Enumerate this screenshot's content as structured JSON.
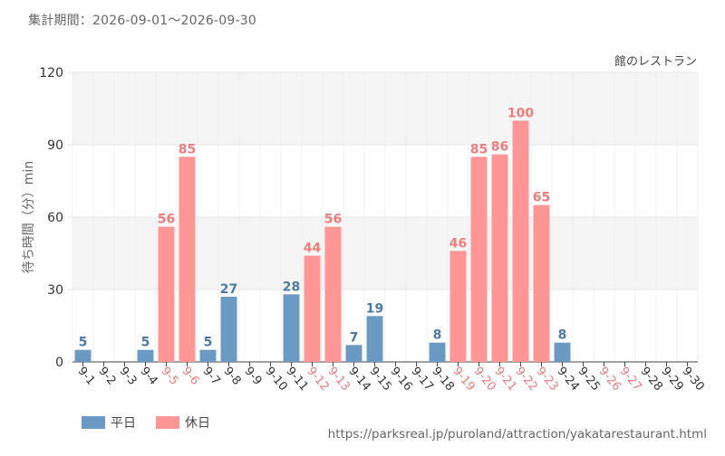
{
  "header": {
    "period": "集計期間：2026-09-01～2026-09-30"
  },
  "footer": {
    "source_url": "https://parksreal.jp/puroland/attraction/yakatarestaurant.html"
  },
  "colors": {
    "weekday": "#6a9ac3",
    "holiday": "#ff9595",
    "weekday_label": "#4a7aa6",
    "holiday_label": "#f07b7b",
    "band": "#f5f5f5",
    "grid": "#e6e6e6"
  },
  "chart_data": {
    "type": "bar",
    "title": "館のレストラン",
    "ylabel": "待ち時間（分）min",
    "xlabel": "",
    "ylim": [
      0,
      120
    ],
    "yticks": [
      0,
      30,
      60,
      90,
      120
    ],
    "grid": true,
    "legend_position": "bottom-left",
    "categories": [
      "9-1",
      "9-2",
      "9-3",
      "9-4",
      "9-5",
      "9-6",
      "9-7",
      "9-8",
      "9-9",
      "9-10",
      "9-11",
      "9-12",
      "9-13",
      "9-14",
      "9-15",
      "9-16",
      "9-17",
      "9-18",
      "9-19",
      "9-20",
      "9-21",
      "9-22",
      "9-23",
      "9-24",
      "9-25",
      "9-26",
      "9-27",
      "9-28",
      "9-29",
      "9-30"
    ],
    "values": [
      5,
      null,
      null,
      5,
      56,
      85,
      5,
      27,
      null,
      null,
      28,
      44,
      56,
      7,
      19,
      null,
      null,
      8,
      46,
      85,
      86,
      100,
      65,
      8,
      null,
      null,
      null,
      null,
      null,
      null
    ],
    "day_type": [
      "weekday",
      "weekday",
      "weekday",
      "weekday",
      "holiday",
      "holiday",
      "weekday",
      "weekday",
      "weekday",
      "weekday",
      "weekday",
      "holiday",
      "holiday",
      "weekday",
      "weekday",
      "weekday",
      "weekday",
      "weekday",
      "holiday",
      "holiday",
      "holiday",
      "holiday",
      "holiday",
      "weekday",
      "weekday",
      "holiday",
      "holiday",
      "weekday",
      "weekday",
      "weekday"
    ],
    "series": [
      {
        "name": "平日",
        "key": "weekday"
      },
      {
        "name": "休日",
        "key": "holiday"
      }
    ]
  }
}
